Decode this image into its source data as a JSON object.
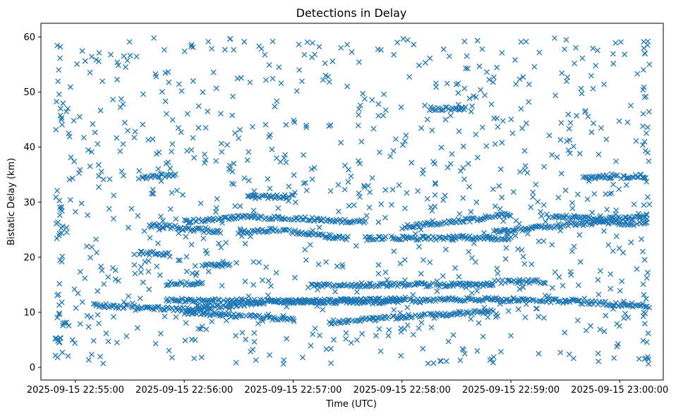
{
  "chart_data": {
    "type": "scatter",
    "title": "Detections in Delay",
    "xlabel": "Time (UTC)",
    "ylabel": "Bistatic Delay (km)",
    "x_start": "2025-09-15 22:54:50",
    "x_end": "2025-09-15 23:00:15",
    "xlim": [
      "2025-09-15 22:54:41",
      "2025-09-15 23:00:24"
    ],
    "ylim": [
      -2.3,
      62.5
    ],
    "x_ticks": [
      "2025-09-15 22:55:00",
      "2025-09-15 22:56:00",
      "2025-09-15 22:57:00",
      "2025-09-15 22:58:00",
      "2025-09-15 22:59:00",
      "2025-09-15 23:00:00"
    ],
    "y_ticks": [
      0,
      10,
      20,
      30,
      40,
      50,
      60
    ],
    "grid": false,
    "marker": "x",
    "color": "#1f77b4",
    "tracks": [
      {
        "from": "2025-09-15 22:55:10",
        "to": "2025-09-15 23:00:15",
        "y": [
          11.3,
          10.5,
          12.0,
          11.8,
          12.4,
          12.1,
          11.2
        ]
      },
      {
        "from": "2025-09-15 22:55:50",
        "to": "2025-09-15 22:58:00",
        "y": [
          12.2,
          12.0,
          12.3
        ]
      },
      {
        "from": "2025-09-15 22:56:00",
        "to": "2025-09-15 22:57:00",
        "y": [
          10.0,
          9.6,
          9.2,
          8.6
        ]
      },
      {
        "from": "2025-09-15 22:57:20",
        "to": "2025-09-15 22:58:50",
        "y": [
          8.2,
          9.0,
          9.6,
          10.2
        ]
      },
      {
        "from": "2025-09-15 22:57:10",
        "to": "2025-09-15 22:58:50",
        "y": [
          15.0,
          15.0
        ]
      },
      {
        "from": "2025-09-15 22:55:40",
        "to": "2025-09-15 22:56:20",
        "y": [
          26.0,
          25.2,
          24.6
        ]
      },
      {
        "from": "2025-09-15 22:56:00",
        "to": "2025-09-15 22:57:40",
        "y": [
          26.5,
          27.3,
          27.0,
          26.4
        ]
      },
      {
        "from": "2025-09-15 22:56:30",
        "to": "2025-09-15 22:57:30",
        "y": [
          24.5,
          25.0,
          24.2,
          23.4
        ]
      },
      {
        "from": "2025-09-15 22:57:40",
        "to": "2025-09-15 22:59:00",
        "y": [
          23.5,
          23.5,
          23.5
        ]
      },
      {
        "from": "2025-09-15 22:58:00",
        "to": "2025-09-15 22:59:00",
        "y": [
          25.5,
          26.5,
          27.8
        ]
      },
      {
        "from": "2025-09-15 22:58:50",
        "to": "2025-09-15 23:00:15",
        "y": [
          24.5,
          25.5,
          26.5,
          26.0
        ]
      },
      {
        "from": "2025-09-15 22:59:20",
        "to": "2025-09-15 23:00:15",
        "y": [
          27.5,
          27.0,
          27.2
        ]
      },
      {
        "from": "2025-09-15 22:55:35",
        "to": "2025-09-15 22:55:55",
        "y": [
          34.5,
          35.0
        ]
      },
      {
        "from": "2025-09-15 22:55:35",
        "to": "2025-09-15 22:55:52",
        "y": [
          20.8,
          20.6
        ]
      },
      {
        "from": "2025-09-15 22:56:10",
        "to": "2025-09-15 22:56:25",
        "y": [
          18.8,
          18.6
        ]
      },
      {
        "from": "2025-09-15 22:55:50",
        "to": "2025-09-15 22:56:10",
        "y": [
          15.2,
          15.2
        ]
      },
      {
        "from": "2025-09-15 22:56:35",
        "to": "2025-09-15 22:57:00",
        "y": [
          31.0,
          31.0
        ]
      },
      {
        "from": "2025-09-15 22:58:15",
        "to": "2025-09-15 22:58:35",
        "y": [
          47.0,
          47.0
        ]
      },
      {
        "from": "2025-09-15 22:59:40",
        "to": "2025-09-15 23:00:15",
        "y": [
          34.5,
          34.7
        ]
      },
      {
        "from": "2025-09-15 22:58:50",
        "to": "2025-09-15 22:59:20",
        "y": [
          15.5,
          15.6
        ]
      }
    ],
    "scatter_band": {
      "from": "2025-09-15 22:54:50",
      "to": "2025-09-15 23:00:15",
      "y_range": [
        0.5,
        60
      ]
    }
  }
}
